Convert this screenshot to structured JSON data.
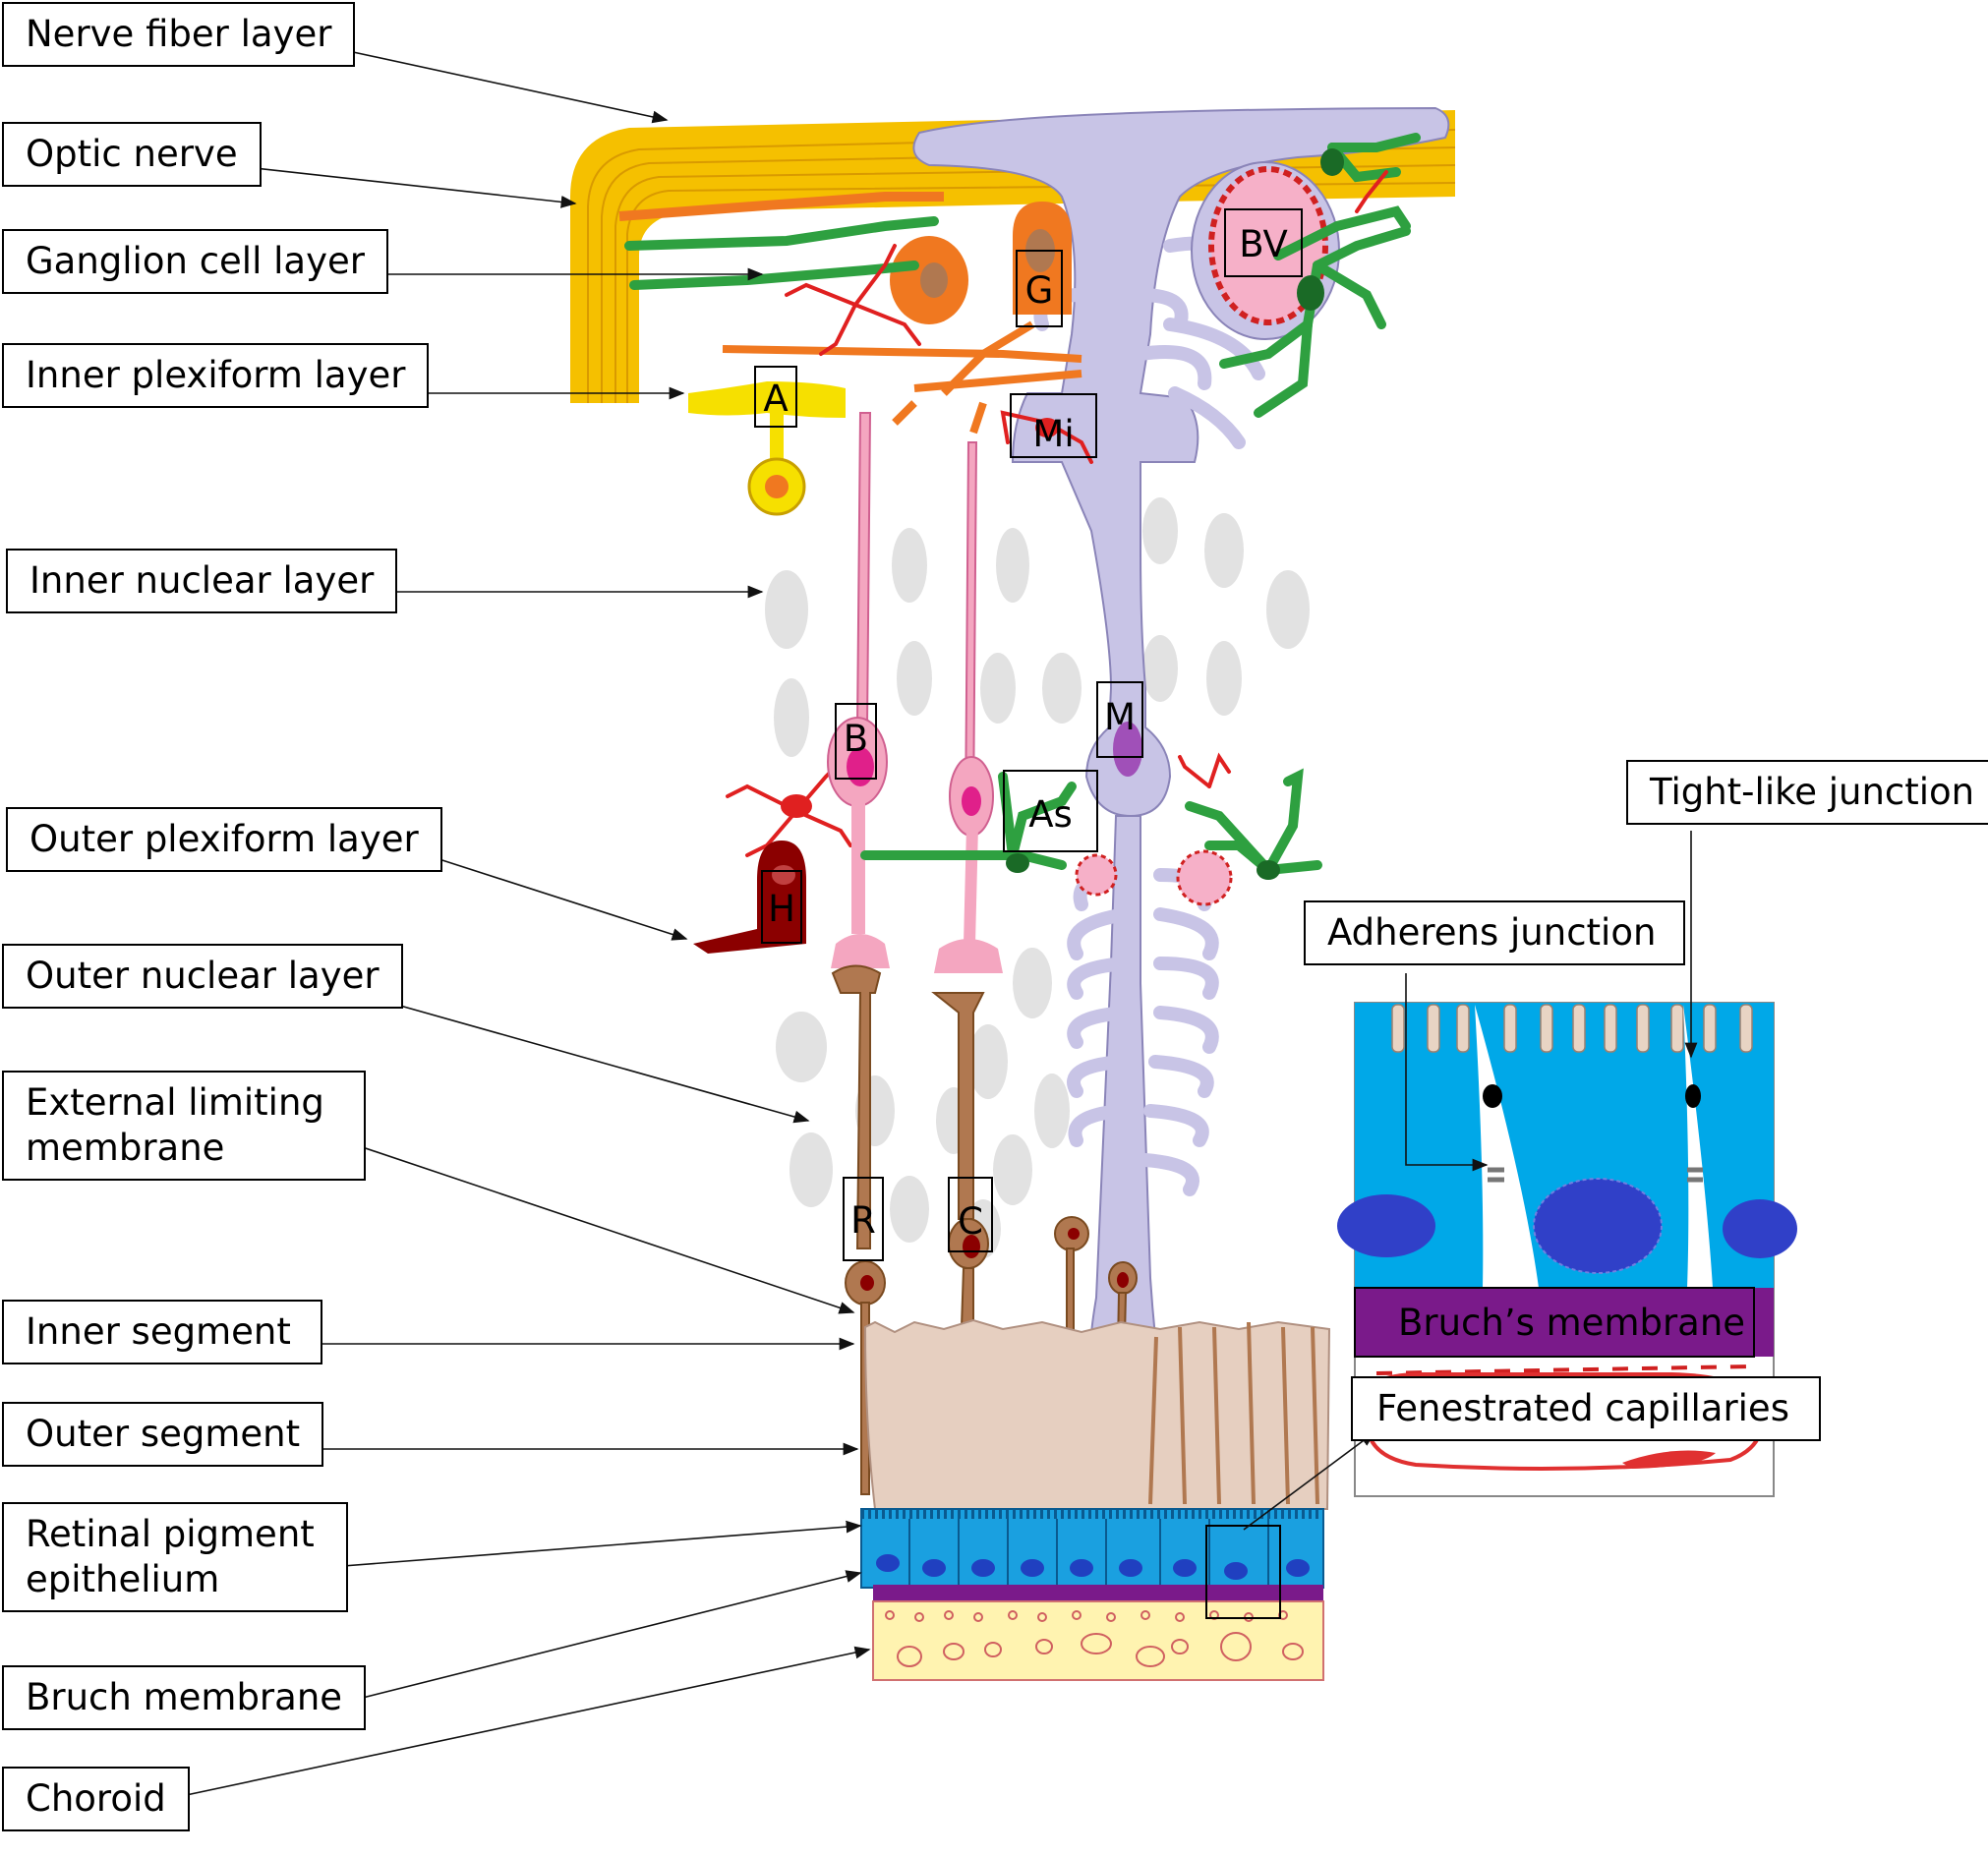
{
  "labels": {
    "nerve_fiber_layer": "Nerve fiber layer",
    "optic_nerve": "Optic nerve",
    "ganglion_cell_layer": "Ganglion cell layer",
    "inner_plexiform_layer": "Inner plexiform layer",
    "inner_nuclear_layer": "Inner nuclear layer",
    "outer_plexiform_layer": "Outer plexiform layer",
    "outer_nuclear_layer": "Outer nuclear layer",
    "external_limiting_membrane": "External limiting\nmembrane",
    "inner_segment": "Inner segment",
    "outer_segment": "Outer segment",
    "retinal_pigment_epithelium": "Retinal pigment\nepithelium",
    "bruch_membrane": "Bruch membrane",
    "choroid": "Choroid",
    "tight_like_junction": "Tight-like junction",
    "adherens_junction": "Adherens junction",
    "fenestrated_capillaries": "Fenestrated capillaries"
  },
  "cell_letters": {
    "bv": "BV",
    "g": "G",
    "a": "A",
    "mi": "Mi",
    "b": "B",
    "m": "M",
    "as": "As",
    "h": "H",
    "r": "R",
    "c": "C"
  },
  "inset": {
    "bruchs_membrane": "Bruch’s membrane"
  },
  "colors": {
    "nerve_fiber": "#f5c000",
    "muller_cell": "#c8c4e6",
    "ganglion": "#f07820",
    "bipolar": "#f4a6c0",
    "amacrine": "#f6e000",
    "astrocyte": "#2ea040",
    "microglia": "#e02020",
    "horizontal": "#8b0000",
    "photoreceptor": "#b07850",
    "segment_zone": "#e6cfc0",
    "rpe": "#1aa0e0",
    "rpe_nucleus": "#2040c0",
    "bruch": "#7a1a8a",
    "choroid": "#fff3b0",
    "nucleus_gray": "#e2e2e2",
    "capillary": "#e03030"
  }
}
